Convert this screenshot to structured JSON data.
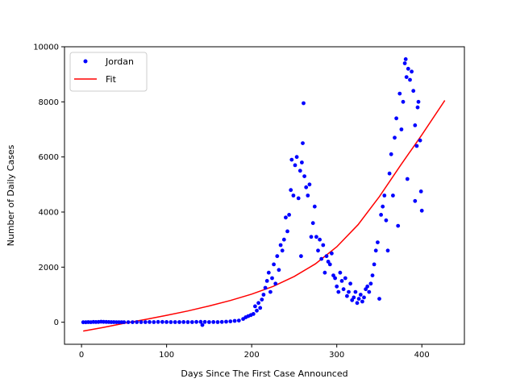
{
  "chart_data": {
    "type": "scatter",
    "xlabel": "Days Since The First Case Announced",
    "ylabel": "Number of Daily Cases",
    "xlim": [
      -20,
      450
    ],
    "ylim": [
      -800,
      10000
    ],
    "xticks": [
      0,
      100,
      200,
      300,
      400
    ],
    "yticks": [
      0,
      2000,
      4000,
      6000,
      8000,
      10000
    ],
    "legend_position": "top-left",
    "grid": false,
    "series": [
      {
        "name": "Jordan",
        "kind": "scatter",
        "color": "#0000ff",
        "points": [
          [
            2,
            0
          ],
          [
            5,
            0
          ],
          [
            8,
            5
          ],
          [
            11,
            3
          ],
          [
            14,
            10
          ],
          [
            17,
            8
          ],
          [
            20,
            12
          ],
          [
            23,
            20
          ],
          [
            26,
            15
          ],
          [
            29,
            10
          ],
          [
            32,
            8
          ],
          [
            35,
            5
          ],
          [
            38,
            4
          ],
          [
            41,
            3
          ],
          [
            44,
            3
          ],
          [
            47,
            2
          ],
          [
            50,
            1
          ],
          [
            55,
            1
          ],
          [
            60,
            2
          ],
          [
            65,
            4
          ],
          [
            70,
            4
          ],
          [
            75,
            5
          ],
          [
            80,
            8
          ],
          [
            85,
            6
          ],
          [
            90,
            10
          ],
          [
            95,
            12
          ],
          [
            100,
            8
          ],
          [
            105,
            6
          ],
          [
            110,
            5
          ],
          [
            115,
            5
          ],
          [
            120,
            8
          ],
          [
            125,
            6
          ],
          [
            130,
            5
          ],
          [
            135,
            10
          ],
          [
            140,
            15
          ],
          [
            142,
            -100
          ],
          [
            145,
            10
          ],
          [
            150,
            6
          ],
          [
            155,
            8
          ],
          [
            160,
            5
          ],
          [
            165,
            10
          ],
          [
            170,
            20
          ],
          [
            175,
            30
          ],
          [
            180,
            50
          ],
          [
            185,
            60
          ],
          [
            190,
            120
          ],
          [
            193,
            180
          ],
          [
            196,
            220
          ],
          [
            199,
            260
          ],
          [
            202,
            300
          ],
          [
            204,
            580
          ],
          [
            206,
            420
          ],
          [
            208,
            700
          ],
          [
            210,
            520
          ],
          [
            212,
            820
          ],
          [
            214,
            1000
          ],
          [
            216,
            1250
          ],
          [
            218,
            1500
          ],
          [
            220,
            1800
          ],
          [
            222,
            1100
          ],
          [
            224,
            1600
          ],
          [
            226,
            2100
          ],
          [
            228,
            1400
          ],
          [
            230,
            2400
          ],
          [
            232,
            1900
          ],
          [
            234,
            2800
          ],
          [
            236,
            2600
          ],
          [
            238,
            3000
          ],
          [
            240,
            3800
          ],
          [
            242,
            3300
          ],
          [
            244,
            3900
          ],
          [
            246,
            4800
          ],
          [
            247,
            5900
          ],
          [
            249,
            4600
          ],
          [
            251,
            5700
          ],
          [
            253,
            6000
          ],
          [
            255,
            4500
          ],
          [
            257,
            5500
          ],
          [
            258,
            2400
          ],
          [
            259,
            5800
          ],
          [
            260,
            6500
          ],
          [
            261,
            7950
          ],
          [
            262,
            5300
          ],
          [
            264,
            4900
          ],
          [
            266,
            4600
          ],
          [
            268,
            5000
          ],
          [
            270,
            3100
          ],
          [
            272,
            3600
          ],
          [
            274,
            4200
          ],
          [
            276,
            3100
          ],
          [
            278,
            2600
          ],
          [
            280,
            3000
          ],
          [
            282,
            2300
          ],
          [
            284,
            2800
          ],
          [
            286,
            1800
          ],
          [
            288,
            2400
          ],
          [
            290,
            2200
          ],
          [
            292,
            2100
          ],
          [
            294,
            2500
          ],
          [
            296,
            1700
          ],
          [
            298,
            1600
          ],
          [
            300,
            1300
          ],
          [
            302,
            1100
          ],
          [
            304,
            1800
          ],
          [
            306,
            1500
          ],
          [
            308,
            1200
          ],
          [
            310,
            1600
          ],
          [
            312,
            950
          ],
          [
            314,
            1100
          ],
          [
            316,
            1400
          ],
          [
            318,
            800
          ],
          [
            320,
            900
          ],
          [
            322,
            1100
          ],
          [
            324,
            700
          ],
          [
            326,
            850
          ],
          [
            328,
            1000
          ],
          [
            330,
            750
          ],
          [
            332,
            900
          ],
          [
            334,
            1200
          ],
          [
            336,
            1300
          ],
          [
            338,
            1100
          ],
          [
            340,
            1400
          ],
          [
            342,
            1700
          ],
          [
            344,
            2100
          ],
          [
            346,
            2600
          ],
          [
            348,
            2900
          ],
          [
            350,
            850
          ],
          [
            352,
            3900
          ],
          [
            354,
            4200
          ],
          [
            356,
            4600
          ],
          [
            358,
            3700
          ],
          [
            360,
            2600
          ],
          [
            362,
            5400
          ],
          [
            364,
            6100
          ],
          [
            366,
            4600
          ],
          [
            368,
            6700
          ],
          [
            370,
            7400
          ],
          [
            372,
            3500
          ],
          [
            374,
            8300
          ],
          [
            376,
            7000
          ],
          [
            378,
            8000
          ],
          [
            380,
            9400
          ],
          [
            381,
            9550
          ],
          [
            382,
            8900
          ],
          [
            384,
            9200
          ],
          [
            386,
            8800
          ],
          [
            388,
            9100
          ],
          [
            390,
            8400
          ],
          [
            392,
            7150
          ],
          [
            394,
            6400
          ],
          [
            395,
            7800
          ],
          [
            396,
            8000
          ],
          [
            398,
            6600
          ],
          [
            399,
            4750
          ],
          [
            400,
            4050
          ],
          [
            383,
            5200
          ],
          [
            392,
            4400
          ]
        ]
      },
      {
        "name": "Fit",
        "kind": "line",
        "color": "#ff0000",
        "points": [
          [
            2,
            -320
          ],
          [
            25,
            -190
          ],
          [
            50,
            -40
          ],
          [
            75,
            100
          ],
          [
            100,
            250
          ],
          [
            125,
            410
          ],
          [
            150,
            590
          ],
          [
            175,
            790
          ],
          [
            200,
            1020
          ],
          [
            225,
            1300
          ],
          [
            250,
            1660
          ],
          [
            275,
            2120
          ],
          [
            300,
            2740
          ],
          [
            325,
            3540
          ],
          [
            350,
            4560
          ],
          [
            375,
            5700
          ],
          [
            400,
            6800
          ],
          [
            427,
            8050
          ]
        ]
      }
    ]
  }
}
